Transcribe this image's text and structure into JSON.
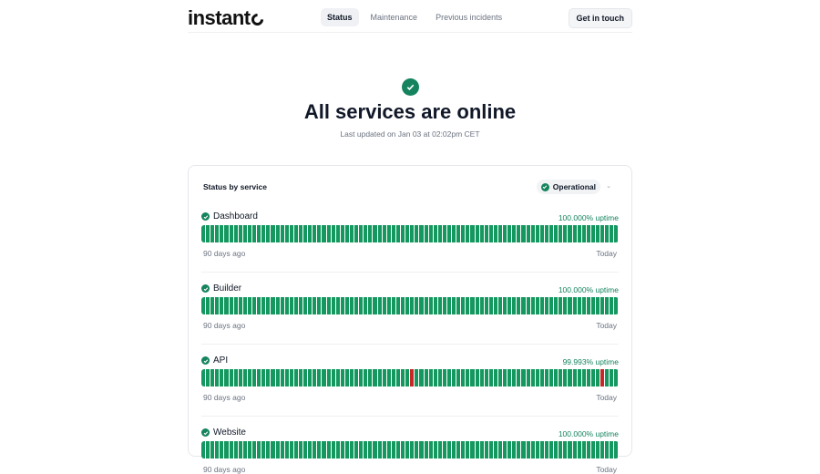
{
  "header": {
    "logo": "instant",
    "nav": [
      {
        "label": "Status",
        "active": true
      },
      {
        "label": "Maintenance"
      },
      {
        "label": "Previous incidents"
      }
    ],
    "cta": "Get in touch"
  },
  "hero": {
    "title": "All services are online",
    "subtitle": "Last updated on Jan 03 at 02:02pm CET"
  },
  "card": {
    "heading": "Status by service",
    "filter": "Operational"
  },
  "labels": {
    "start": "90 days ago",
    "end": "Today"
  },
  "colors": {
    "up": "#15985f",
    "down": "#c62828",
    "accent": "#15845e"
  },
  "services": [
    {
      "name": "Dashboard",
      "uptime": "100.000% uptime",
      "down_days": []
    },
    {
      "name": "Builder",
      "uptime": "100.000% uptime",
      "down_days": []
    },
    {
      "name": "API",
      "uptime": "99.993% uptime",
      "down_days": [
        45,
        86
      ]
    },
    {
      "name": "Website",
      "uptime": "100.000% uptime",
      "down_days": []
    }
  ]
}
